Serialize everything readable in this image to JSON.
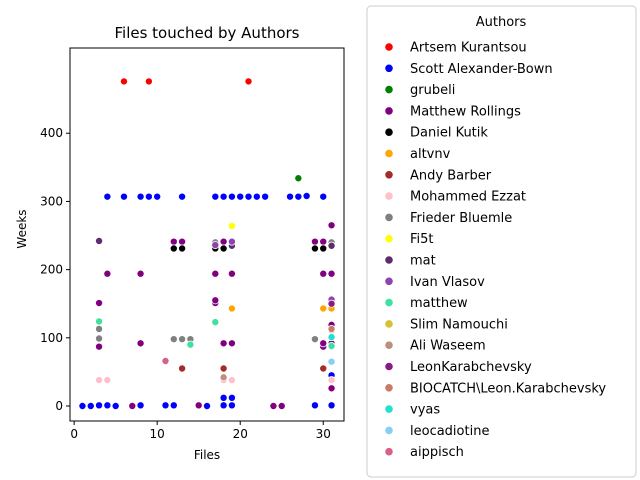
{
  "chart_data": {
    "type": "scatter",
    "title": "Files touched by Authors",
    "xlabel": "Files",
    "ylabel": "Weeks",
    "xlim": [
      -0.5,
      32.5
    ],
    "ylim": [
      -22,
      525
    ],
    "xticks": [
      0,
      10,
      20,
      30
    ],
    "yticks": [
      0,
      100,
      200,
      300,
      400
    ],
    "grid": false,
    "legend": {
      "title": "Authors",
      "placement": "outside-right",
      "entries": [
        {
          "name": "Artsem Kurantsou",
          "color": "#ff0000"
        },
        {
          "name": "Scott Alexander-Bown",
          "color": "#0000ff"
        },
        {
          "name": "grubeli",
          "color": "#008000"
        },
        {
          "name": "Matthew Rollings",
          "color": "#800080"
        },
        {
          "name": "Daniel Kutik",
          "color": "#000000"
        },
        {
          "name": "altvnv",
          "color": "#ffa500"
        },
        {
          "name": "Andy Barber",
          "color": "#a52a2a"
        },
        {
          "name": "Mohammed Ezzat",
          "color": "#ffc0cb"
        },
        {
          "name": "Frieder Bluemle",
          "color": "#808080"
        },
        {
          "name": "Fi5t",
          "color": "#ffff00"
        },
        {
          "name": "mat",
          "color": "#5b2c6f"
        },
        {
          "name": "Ivan Vlasov",
          "color": "#8e44ad"
        },
        {
          "name": "matthew",
          "color": "#40e0a0"
        },
        {
          "name": "Slim Namouchi",
          "color": "#d4c230"
        },
        {
          "name": "Ali Waseem",
          "color": "#bc8f7f"
        },
        {
          "name": "LeonKarabchevsky",
          "color": "#8b1a89"
        },
        {
          "name": "BIOCATCH\\Leon.Karabchevsky",
          "color": "#c97b6b"
        },
        {
          "name": "vyas",
          "color": "#20e0d0"
        },
        {
          "name": "leocadiotine",
          "color": "#87cefa"
        },
        {
          "name": "aippisch",
          "color": "#d9608c"
        }
      ]
    },
    "series": [
      {
        "name": "Artsem Kurantsou",
        "points": [
          [
            6,
            476
          ],
          [
            9,
            476
          ],
          [
            21,
            476
          ]
        ]
      },
      {
        "name": "Scott Alexander-Bown",
        "points": [
          [
            1,
            0
          ],
          [
            2,
            0
          ],
          [
            3,
            1
          ],
          [
            4,
            1
          ],
          [
            5,
            0
          ],
          [
            8,
            1
          ],
          [
            11,
            1
          ],
          [
            12,
            1
          ],
          [
            16,
            0
          ],
          [
            18,
            1
          ],
          [
            18,
            12
          ],
          [
            19,
            1
          ],
          [
            19,
            12
          ],
          [
            29,
            1
          ],
          [
            31,
            1
          ],
          [
            4,
            307
          ],
          [
            6,
            307
          ],
          [
            8,
            307
          ],
          [
            9,
            307
          ],
          [
            10,
            307
          ],
          [
            13,
            307
          ],
          [
            17,
            307
          ],
          [
            18,
            307
          ],
          [
            19,
            307
          ],
          [
            20,
            307
          ],
          [
            21,
            307
          ],
          [
            22,
            307
          ],
          [
            23,
            307
          ],
          [
            26,
            307
          ],
          [
            27,
            307
          ],
          [
            28,
            308
          ],
          [
            30,
            307
          ],
          [
            18,
            42
          ],
          [
            31,
            45
          ]
        ]
      },
      {
        "name": "grubeli",
        "points": [
          [
            27,
            334
          ]
        ]
      },
      {
        "name": "Matthew Rollings",
        "points": [
          [
            3,
            87
          ],
          [
            3,
            151
          ],
          [
            4,
            194
          ],
          [
            7,
            0
          ],
          [
            8,
            92
          ],
          [
            8,
            194
          ],
          [
            12,
            241
          ],
          [
            13,
            241
          ],
          [
            15,
            1
          ],
          [
            17,
            151
          ],
          [
            17,
            155
          ],
          [
            17,
            194
          ],
          [
            18,
            92
          ],
          [
            18,
            241
          ],
          [
            19,
            92
          ],
          [
            19,
            194
          ],
          [
            24,
            0
          ],
          [
            25,
            0
          ],
          [
            29,
            241
          ],
          [
            30,
            87
          ],
          [
            30,
            92
          ],
          [
            30,
            194
          ],
          [
            30,
            241
          ],
          [
            31,
            26
          ],
          [
            31,
            87
          ],
          [
            31,
            92
          ],
          [
            31,
            119
          ],
          [
            31,
            194
          ],
          [
            31,
            265
          ]
        ]
      },
      {
        "name": "Daniel Kutik",
        "points": [
          [
            12,
            231
          ],
          [
            13,
            231
          ],
          [
            17,
            231
          ],
          [
            18,
            231
          ],
          [
            29,
            231
          ],
          [
            30,
            231
          ]
        ]
      },
      {
        "name": "altvnv",
        "points": [
          [
            19,
            143
          ],
          [
            30,
            143
          ],
          [
            31,
            143
          ]
        ]
      },
      {
        "name": "Andy Barber",
        "points": [
          [
            13,
            55
          ],
          [
            18,
            55
          ],
          [
            30,
            55
          ]
        ]
      },
      {
        "name": "Mohammed Ezzat",
        "points": [
          [
            3,
            38
          ],
          [
            4,
            38
          ],
          [
            18,
            38
          ],
          [
            19,
            38
          ],
          [
            31,
            38
          ]
        ]
      },
      {
        "name": "Frieder Bluemle",
        "points": [
          [
            3,
            99
          ],
          [
            3,
            113
          ],
          [
            12,
            98
          ],
          [
            13,
            98
          ],
          [
            14,
            98
          ],
          [
            17,
            240
          ],
          [
            29,
            98
          ],
          [
            31,
            240
          ]
        ]
      },
      {
        "name": "Fi5t",
        "points": [
          [
            19,
            264
          ]
        ]
      },
      {
        "name": "mat",
        "points": [
          [
            3,
            242
          ],
          [
            19,
            235
          ],
          [
            31,
            235
          ]
        ]
      },
      {
        "name": "Ivan Vlasov",
        "points": [
          [
            17,
            236
          ],
          [
            19,
            241
          ],
          [
            31,
            156
          ]
        ]
      },
      {
        "name": "matthew",
        "points": [
          [
            3,
            124
          ],
          [
            14,
            90
          ],
          [
            17,
            123
          ],
          [
            31,
            88
          ]
        ]
      },
      {
        "name": "Slim Namouchi",
        "points": [
          [
            18,
            43
          ]
        ]
      },
      {
        "name": "Ali Waseem",
        "points": [
          [
            18,
            42
          ],
          [
            31,
            111
          ]
        ]
      },
      {
        "name": "LeonKarabchevsky",
        "points": [
          [
            31,
            150
          ]
        ]
      },
      {
        "name": "BIOCATCH\\Leon.Karabchevsky",
        "points": [
          [
            31,
            113
          ]
        ]
      },
      {
        "name": "vyas",
        "points": [
          [
            31,
            101
          ]
        ]
      },
      {
        "name": "leocadiotine",
        "points": [
          [
            31,
            65
          ]
        ]
      },
      {
        "name": "aippisch",
        "points": [
          [
            11,
            66
          ]
        ]
      }
    ]
  }
}
